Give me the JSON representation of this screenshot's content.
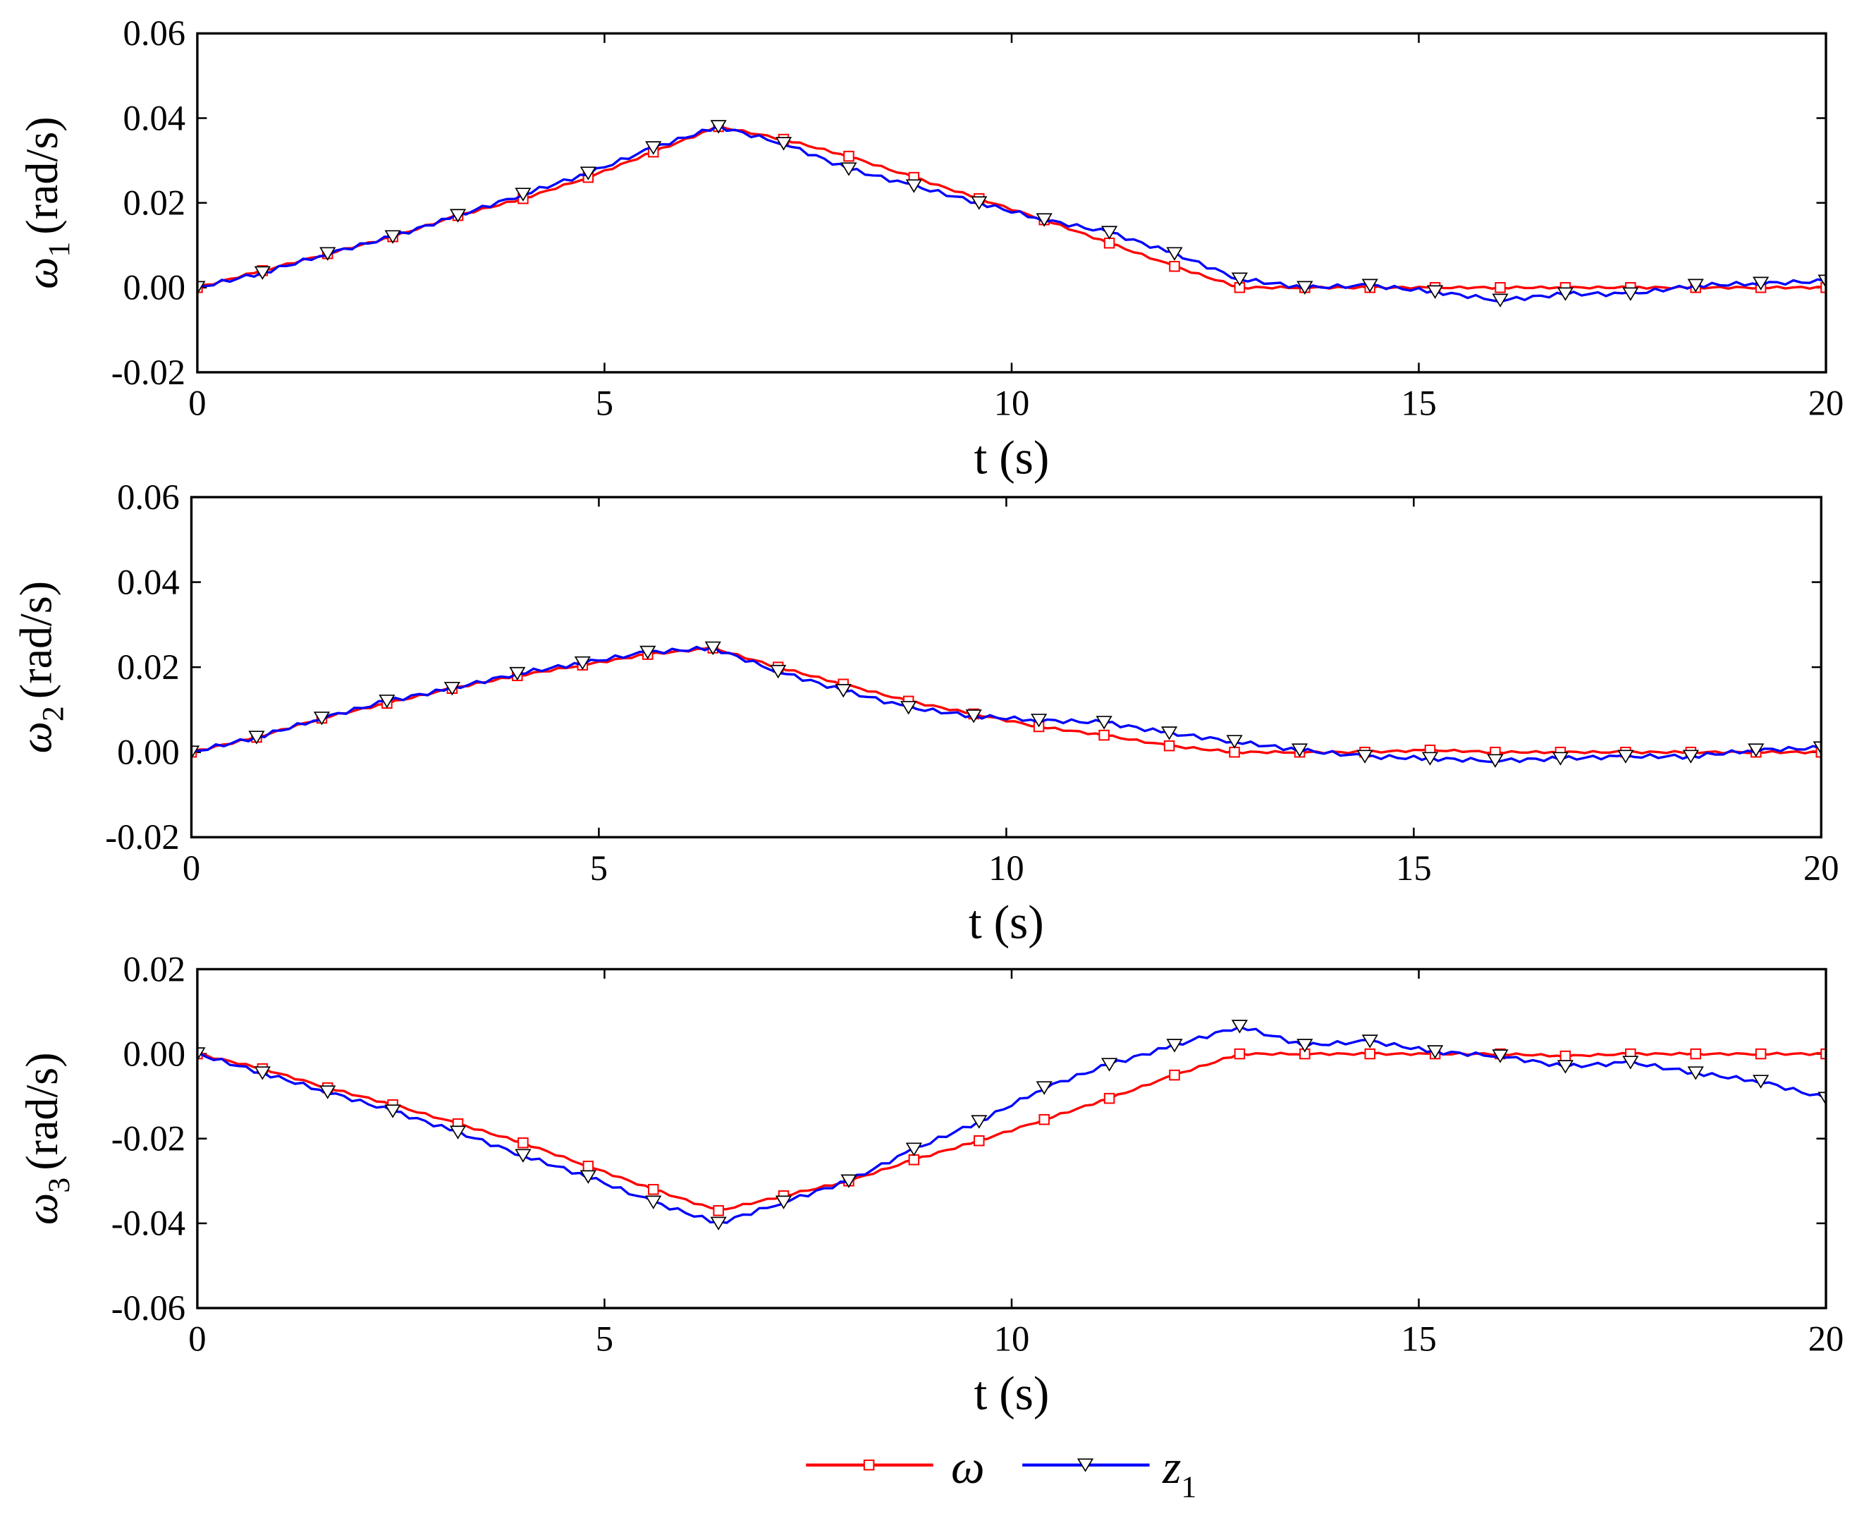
{
  "chart_data": [
    {
      "type": "line",
      "ylabel": {
        "symbol": "ω",
        "sub": "1",
        "unit": "(rad/s)"
      },
      "xlabel": "t (s)",
      "xlim": [
        0,
        20
      ],
      "ylim": [
        -0.02,
        0.06
      ],
      "xticks": [
        "0",
        "5",
        "10",
        "15",
        "20"
      ],
      "yticks": [
        "-0.02",
        "0.00",
        "0.02",
        "0.04",
        "0.06"
      ],
      "x": [
        0,
        0.8,
        1.6,
        2.4,
        3.2,
        4.0,
        4.8,
        5.6,
        6.4,
        7.2,
        8.0,
        8.8,
        9.6,
        10.4,
        11.2,
        12.0,
        12.8,
        13.6,
        14.4,
        15.2,
        16.0,
        16.8,
        17.6,
        18.4,
        19.2,
        20.0
      ],
      "series": [
        {
          "name": "ω",
          "values": [
            0,
            0.004,
            0.008,
            0.012,
            0.017,
            0.021,
            0.026,
            0.032,
            0.038,
            0.035,
            0.031,
            0.026,
            0.021,
            0.016,
            0.0105,
            0.005,
            0,
            0,
            0,
            0,
            0,
            0,
            0,
            0,
            0,
            0
          ]
        },
        {
          "name": "z1",
          "values": [
            0,
            0.0035,
            0.008,
            0.012,
            0.017,
            0.022,
            0.027,
            0.033,
            0.038,
            0.034,
            0.028,
            0.024,
            0.02,
            0.016,
            0.013,
            0.008,
            0.002,
            0,
            0.0005,
            -0.001,
            -0.003,
            -0.0015,
            -0.0015,
            0.0005,
            0.001,
            0.0015
          ]
        }
      ]
    },
    {
      "type": "line",
      "ylabel": {
        "symbol": "ω",
        "sub": "2",
        "unit": "(rad/s)"
      },
      "xlabel": "t (s)",
      "xlim": [
        0,
        20
      ],
      "ylim": [
        -0.02,
        0.06
      ],
      "xticks": [
        "0",
        "5",
        "10",
        "15",
        "20"
      ],
      "yticks": [
        "-0.02",
        "0.00",
        "0.02",
        "0.04",
        "0.06"
      ],
      "x": [
        0,
        0.8,
        1.6,
        2.4,
        3.2,
        4.0,
        4.8,
        5.6,
        6.4,
        7.2,
        8.0,
        8.8,
        9.6,
        10.4,
        11.2,
        12.0,
        12.8,
        13.6,
        14.4,
        15.2,
        16.0,
        16.8,
        17.6,
        18.4,
        19.2,
        20.0
      ],
      "series": [
        {
          "name": "ω",
          "values": [
            0,
            0.0035,
            0.008,
            0.0115,
            0.015,
            0.018,
            0.0205,
            0.023,
            0.0245,
            0.02,
            0.016,
            0.012,
            0.009,
            0.006,
            0.004,
            0.0015,
            0,
            0,
            0,
            0.0005,
            0,
            0,
            0,
            0,
            0,
            0
          ]
        },
        {
          "name": "z1",
          "values": [
            0,
            0.0035,
            0.008,
            0.012,
            0.015,
            0.0185,
            0.021,
            0.0235,
            0.0245,
            0.019,
            0.0145,
            0.0105,
            0.0085,
            0.0075,
            0.007,
            0.0045,
            0.0025,
            0.0005,
            -0.001,
            -0.0015,
            -0.002,
            -0.0015,
            -0.001,
            -0.001,
            0.0005,
            0.001
          ]
        }
      ]
    },
    {
      "type": "line",
      "ylabel": {
        "symbol": "ω",
        "sub": "3",
        "unit": "(rad/s)"
      },
      "xlabel": "t (s)",
      "xlim": [
        0,
        20
      ],
      "ylim": [
        -0.06,
        0.02
      ],
      "xticks": [
        "0",
        "5",
        "10",
        "15",
        "20"
      ],
      "yticks": [
        "-0.06",
        "-0.04",
        "-0.02",
        "0.00",
        "0.02"
      ],
      "x": [
        0,
        0.8,
        1.6,
        2.4,
        3.2,
        4.0,
        4.8,
        5.6,
        6.4,
        7.2,
        8.0,
        8.8,
        9.6,
        10.4,
        11.2,
        12.0,
        12.8,
        13.6,
        14.4,
        15.2,
        16.0,
        16.8,
        17.6,
        18.4,
        19.2,
        20.0
      ],
      "series": [
        {
          "name": "ω",
          "values": [
            0,
            -0.0035,
            -0.008,
            -0.012,
            -0.0165,
            -0.021,
            -0.0265,
            -0.032,
            -0.037,
            -0.0335,
            -0.03,
            -0.025,
            -0.0205,
            -0.0155,
            -0.0105,
            -0.005,
            0,
            0,
            0,
            0,
            0,
            -0.0005,
            0,
            0,
            0,
            0
          ]
        },
        {
          "name": "z1",
          "values": [
            0,
            -0.0045,
            -0.009,
            -0.0135,
            -0.0185,
            -0.024,
            -0.029,
            -0.035,
            -0.04,
            -0.035,
            -0.03,
            -0.0225,
            -0.016,
            -0.008,
            -0.0025,
            0.002,
            0.0065,
            0.002,
            0.003,
            0.0005,
            -0.0005,
            -0.003,
            -0.002,
            -0.0045,
            -0.0065,
            -0.0105
          ]
        }
      ]
    }
  ],
  "legend": {
    "items": [
      {
        "label": "ω",
        "sub": "",
        "color": "#ff0000",
        "marker": "square"
      },
      {
        "label": "z",
        "sub": "1",
        "color": "#0000ff",
        "marker": "triangle-down"
      }
    ]
  },
  "colors": {
    "omega": "#ff0000",
    "z1": "#0000ff"
  }
}
